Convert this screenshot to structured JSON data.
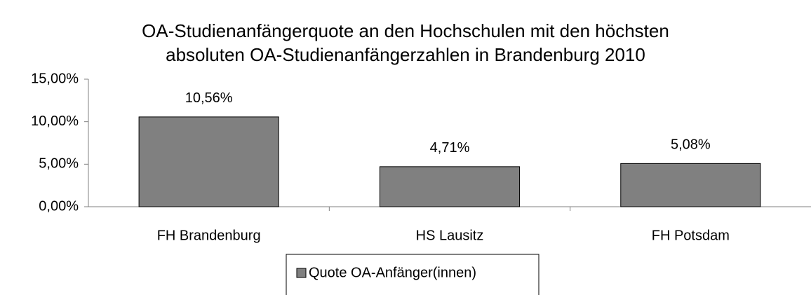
{
  "chart_data": {
    "type": "bar",
    "title": [
      "OA-Studienanfängerquote an den Hochschulen mit den höchsten",
      "absoluten OA-Studienanfängerzahlen in Brandenburg 2010"
    ],
    "categories": [
      "FH Brandenburg",
      "HS Lausitz",
      "FH Potsdam"
    ],
    "series": [
      {
        "name": "Quote OA-Anfänger(innen)",
        "color": "#808080",
        "values": [
          10.56,
          4.71,
          5.08
        ],
        "value_labels": [
          "10,56%",
          "4,71%",
          "5,08%"
        ]
      }
    ],
    "ylim": [
      0,
      15
    ],
    "yticks": [
      {
        "value": 0,
        "label": "0,00%"
      },
      {
        "value": 5,
        "label": "5,00%"
      },
      {
        "value": 10,
        "label": "10,00%"
      },
      {
        "value": 15,
        "label": "15,00%"
      }
    ],
    "grid": false,
    "legend": "bottom"
  }
}
